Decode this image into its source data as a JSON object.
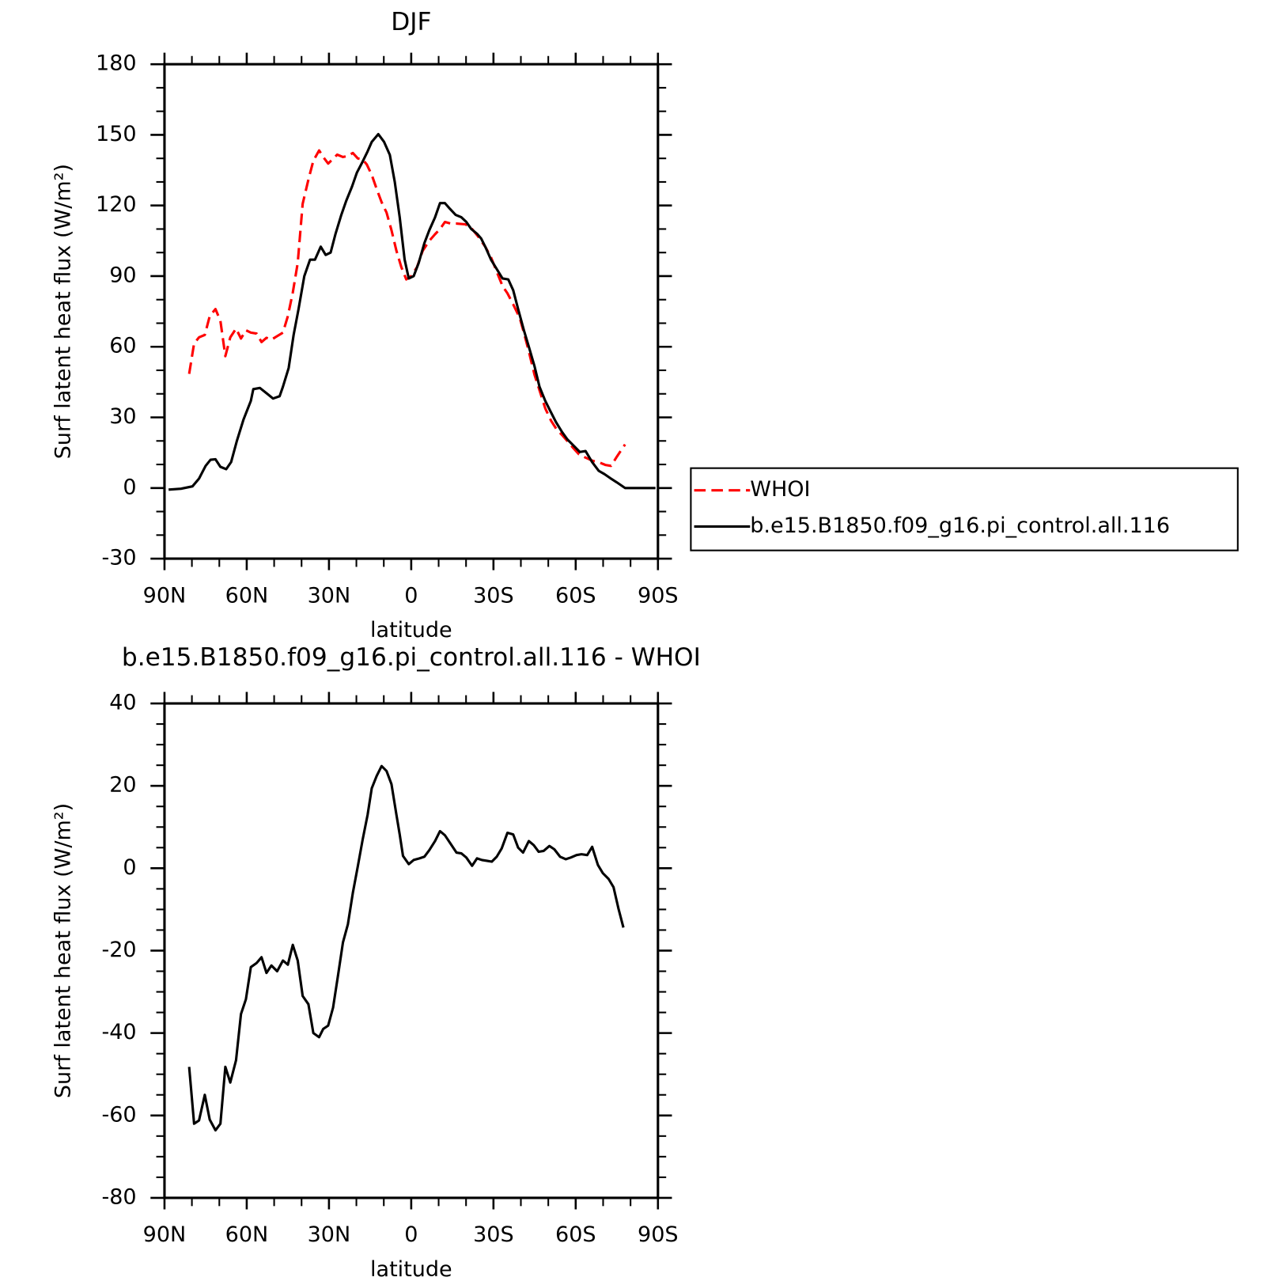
{
  "chart_data": [
    {
      "type": "line",
      "title": "DJF",
      "xlabel": "latitude",
      "ylabel": "Surf latent heat flux (W/m²)",
      "xlim": [
        90,
        -90
      ],
      "xticks": [
        {
          "value": 90,
          "label": "90N"
        },
        {
          "value": 60,
          "label": "60N"
        },
        {
          "value": 30,
          "label": "30N"
        },
        0,
        {
          "value": -30,
          "label": "30S"
        },
        {
          "value": -60,
          "label": "60S"
        },
        {
          "value": -90,
          "label": "90S"
        }
      ],
      "ylim": [
        -30,
        180
      ],
      "yticks": [
        -30,
        0,
        30,
        60,
        90,
        120,
        150,
        180
      ],
      "minor_ticks_per_interval": {
        "x": 2,
        "y": 2
      },
      "legend": "right",
      "series": [
        {
          "name": "WHOI",
          "color": "#ff0000",
          "style": "dashed",
          "x": [
            81,
            79.2,
            77.4,
            75.3,
            73.5,
            71.4,
            69.6,
            67.8,
            66,
            63.9,
            62.1,
            60.3,
            58.5,
            56.4,
            54.6,
            52.8,
            51,
            48.9,
            46.8,
            45,
            43.2,
            41.4,
            39.6,
            37.5,
            35.7,
            33.6,
            32.1,
            30.3,
            28.8,
            27,
            24.9,
            23.1,
            21.3,
            19.5,
            17.7,
            16.2,
            14.4,
            12.6,
            10.8,
            9,
            7.2,
            5.4,
            3.6,
            1.8,
            0,
            -2.1,
            -4.2,
            -6.6,
            -8.7,
            -10.5,
            -12.3,
            -14.4,
            -16.5,
            -19.8,
            -22.2,
            -24.3,
            -27,
            -29.1,
            -31.5,
            -33.3,
            -35.1,
            -37.2,
            -39.6,
            -41.1,
            -42.9,
            -45,
            -46.8,
            -48.9,
            -51,
            -53.1,
            -55.2,
            -57,
            -59.1,
            -61.2,
            -63.6,
            -66.3,
            -68.4,
            -70.8,
            -72.9,
            -75,
            -78
          ],
          "values": [
            48.5,
            61.4,
            64,
            65,
            73,
            76,
            71,
            56,
            64,
            67.7,
            63.5,
            67,
            66,
            65.6,
            62,
            63.8,
            63,
            64.5,
            66,
            73,
            83,
            95.6,
            120.7,
            131,
            139,
            143.4,
            140.6,
            137.8,
            139.5,
            141.6,
            140.6,
            141,
            142.3,
            140,
            139.5,
            137.4,
            133,
            127,
            121.4,
            117,
            109.5,
            100.8,
            93.8,
            88.6,
            90,
            93.8,
            100.8,
            105,
            107.8,
            110,
            113,
            112.3,
            112.3,
            112,
            110,
            107,
            102.5,
            98,
            91,
            85.8,
            82.7,
            78,
            72.2,
            66,
            58,
            48,
            41.5,
            33.8,
            28.6,
            24.8,
            22.3,
            19.9,
            17,
            14.3,
            12.9,
            11.5,
            11,
            9.8,
            9.4,
            13.3,
            18.5
          ]
        },
        {
          "name": "b.e15.B1850.f09_g16.pi_control.all.116",
          "color": "#000000",
          "style": "solid",
          "x": [
            88.5,
            84,
            79.8,
            77.4,
            75,
            73.2,
            71.4,
            69.6,
            67.5,
            65.7,
            63.6,
            61.2,
            58.5,
            57.6,
            55.2,
            52.5,
            50.4,
            48,
            46.8,
            44.7,
            42.9,
            41.1,
            39,
            36.9,
            35.1,
            33,
            31.2,
            29.4,
            27.6,
            25.5,
            23.7,
            21.6,
            19.8,
            18,
            15.9,
            14.4,
            12,
            9.9,
            7.8,
            6,
            4.2,
            2.4,
            0.9,
            -0.9,
            -2.7,
            -4.8,
            -6.6,
            -8.7,
            -10.5,
            -12.3,
            -14.1,
            -16.2,
            -18.3,
            -20.1,
            -21.9,
            -24,
            -25.5,
            -27,
            -29.1,
            -31.2,
            -33.3,
            -35.4,
            -37.2,
            -39,
            -41.1,
            -42.9,
            -45,
            -46.8,
            -48.9,
            -50.7,
            -52.8,
            -54.9,
            -57,
            -59.4,
            -61.5,
            -63.6,
            -66,
            -68.4,
            -70.5,
            -72.6,
            -75,
            -78,
            -81,
            -89.1
          ],
          "values": [
            -0.7,
            -0.3,
            0.7,
            4,
            9.4,
            12,
            12.2,
            9,
            8,
            11,
            20,
            29,
            37,
            42,
            42.5,
            40,
            38,
            39,
            43,
            51,
            65,
            76,
            90,
            97,
            97,
            102.5,
            99,
            100,
            108,
            116,
            122,
            128,
            134,
            138,
            143,
            147,
            150.3,
            147,
            141.5,
            130,
            115,
            97,
            89,
            90,
            95.5,
            104,
            109.5,
            115,
            121,
            121,
            118.6,
            116,
            115,
            113,
            110,
            108,
            106,
            102.5,
            97,
            93,
            89,
            88.6,
            84,
            76,
            67,
            60,
            51.6,
            43,
            37,
            32.8,
            28,
            24,
            20.6,
            17.8,
            15.3,
            15.7,
            11,
            7.3,
            5.9,
            4.2,
            2.4,
            0,
            0,
            0
          ]
        }
      ]
    },
    {
      "type": "line",
      "title": "b.e15.B1850.f09_g16.pi_control.all.116 - WHOI",
      "xlabel": "latitude",
      "ylabel": "Surf latent heat flux (W/m²)",
      "xlim": [
        90,
        -90
      ],
      "xticks": [
        {
          "value": 90,
          "label": "90N"
        },
        {
          "value": 60,
          "label": "60N"
        },
        {
          "value": 30,
          "label": "30N"
        },
        0,
        {
          "value": -30,
          "label": "30S"
        },
        {
          "value": -60,
          "label": "60S"
        },
        {
          "value": -90,
          "label": "90S"
        }
      ],
      "ylim": [
        -80,
        40
      ],
      "yticks": [
        -80,
        -60,
        -40,
        -20,
        0,
        20,
        40
      ],
      "minor_ticks_per_interval": {
        "x": 2,
        "y": 3
      },
      "series": [
        {
          "color": "#000000",
          "style": "solid",
          "x": [
            81,
            79.2,
            77.4,
            75.3,
            73.5,
            71.4,
            69.6,
            67.8,
            66,
            63.9,
            62.1,
            60.3,
            58.5,
            56.4,
            54.6,
            52.8,
            51,
            48.9,
            46.8,
            45,
            43.2,
            41.4,
            39.6,
            37.5,
            35.7,
            33.6,
            32.1,
            30.3,
            28.5,
            26.7,
            24.9,
            23.1,
            21.3,
            19.5,
            17.7,
            15.9,
            14.4,
            12.6,
            10.8,
            9,
            7.2,
            5.4,
            4.2,
            3,
            0.9,
            -0.9,
            -3,
            -4.8,
            -6.6,
            -8.7,
            -10.5,
            -12.3,
            -14.1,
            -16.5,
            -18.3,
            -20.1,
            -22.2,
            -24,
            -25.8,
            -27.6,
            -29.4,
            -31.2,
            -33,
            -35.1,
            -37.2,
            -39,
            -40.8,
            -42.9,
            -44.7,
            -46.5,
            -48.3,
            -50.4,
            -52.2,
            -54.3,
            -56.4,
            -58.2,
            -60.3,
            -62.1,
            -64.2,
            -66,
            -68.1,
            -69.9,
            -72,
            -73.8,
            -75.6,
            -77.4
          ],
          "values": [
            -48.2,
            -62,
            -61.2,
            -55,
            -61,
            -63.6,
            -62,
            -48.2,
            -52,
            -46.6,
            -35.4,
            -31.8,
            -24,
            -23,
            -21.6,
            -25.4,
            -23.6,
            -25,
            -22.4,
            -23.4,
            -18.6,
            -22.4,
            -31,
            -33,
            -40,
            -41,
            -39,
            -38.2,
            -33.8,
            -26,
            -18,
            -13.6,
            -6,
            0.4,
            7,
            13,
            19.4,
            22.4,
            24.8,
            23.6,
            20.4,
            13,
            8.2,
            3,
            1,
            2,
            2.4,
            2.8,
            4.4,
            6.6,
            9,
            8,
            6.2,
            3.8,
            3.6,
            2.6,
            0.6,
            2.4,
            2,
            1.8,
            1.6,
            2.8,
            4.8,
            8.6,
            8.2,
            5,
            3.8,
            6.6,
            5.6,
            4,
            4.2,
            5.4,
            4.6,
            2.8,
            2.2,
            2.6,
            3.2,
            3.4,
            3.2,
            5.2,
            0.8,
            -1.2,
            -2.6,
            -4.6,
            -9.8,
            -14.4
          ]
        }
      ]
    }
  ]
}
